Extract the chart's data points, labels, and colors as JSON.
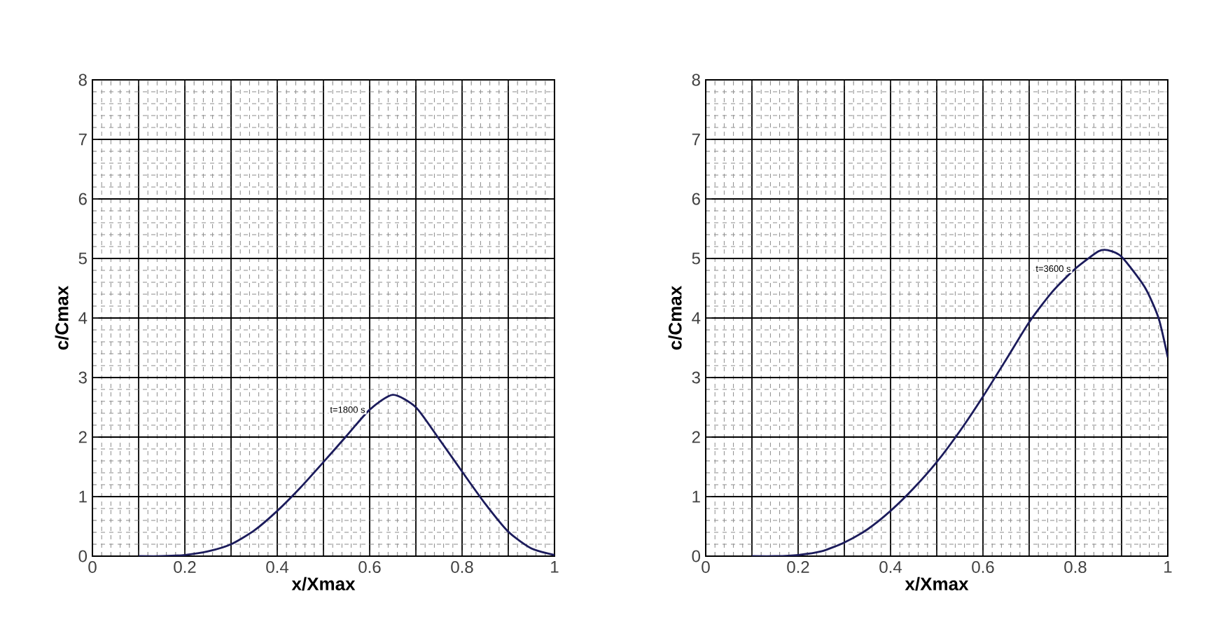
{
  "chart_data": [
    {
      "type": "line",
      "xlabel": "x/Xmax",
      "ylabel": "c/Cmax",
      "xlim": [
        0,
        1
      ],
      "ylim": [
        0,
        8
      ],
      "xticks": [
        0,
        {
          "value": 0.1,
          "label": null
        },
        0.2,
        {
          "value": 0.3,
          "label": null
        },
        0.4,
        {
          "value": 0.5,
          "label": null
        },
        0.6,
        {
          "value": 0.7,
          "label": null
        },
        0.8,
        {
          "value": 0.9,
          "label": null
        },
        1
      ],
      "yticks": [
        0,
        1,
        2,
        3,
        4,
        5,
        6,
        7,
        8
      ],
      "grid": true,
      "series": [
        {
          "color": "#1c1c5c",
          "x": [
            0.1,
            0.15,
            0.2,
            0.25,
            0.3,
            0.35,
            0.4,
            0.45,
            0.5,
            0.55,
            0.6,
            0.65,
            0.7,
            0.75,
            0.8,
            0.85,
            0.9,
            0.95,
            1.0
          ],
          "values": [
            0,
            0,
            0.02,
            0.08,
            0.2,
            0.43,
            0.76,
            1.15,
            1.58,
            2.02,
            2.46,
            2.71,
            2.5,
            1.97,
            1.42,
            0.88,
            0.41,
            0.13,
            0.02
          ]
        }
      ],
      "annotations": [
        {
          "text": "t=1800 s",
          "x": 0.6,
          "y": 2.46
        }
      ]
    },
    {
      "type": "line",
      "xlabel": "x/Xmax",
      "ylabel": "c/Cmax",
      "xlim": [
        0,
        1
      ],
      "ylim": [
        0,
        8
      ],
      "xticks": [
        0,
        {
          "value": 0.1,
          "label": null
        },
        0.2,
        {
          "value": 0.3,
          "label": null
        },
        0.4,
        {
          "value": 0.5,
          "label": null
        },
        0.6,
        {
          "value": 0.7,
          "label": null
        },
        0.8,
        {
          "value": 0.9,
          "label": null
        },
        1
      ],
      "yticks": [
        0,
        1,
        2,
        3,
        4,
        5,
        6,
        7,
        8
      ],
      "grid": true,
      "series": [
        {
          "color": "#1c1c5c",
          "x": [
            0.1,
            0.15,
            0.2,
            0.25,
            0.3,
            0.35,
            0.4,
            0.45,
            0.5,
            0.55,
            0.6,
            0.65,
            0.7,
            0.75,
            0.8,
            0.85,
            0.87,
            0.9,
            0.95,
            0.98,
            1.0
          ],
          "values": [
            0,
            0,
            0.02,
            0.08,
            0.23,
            0.45,
            0.76,
            1.14,
            1.58,
            2.1,
            2.68,
            3.3,
            3.93,
            4.44,
            4.83,
            5.12,
            5.14,
            5.03,
            4.52,
            4.0,
            3.34
          ]
        }
      ],
      "annotations": [
        {
          "text": "t=3600 s",
          "x": 0.8,
          "y": 4.83
        }
      ]
    }
  ]
}
